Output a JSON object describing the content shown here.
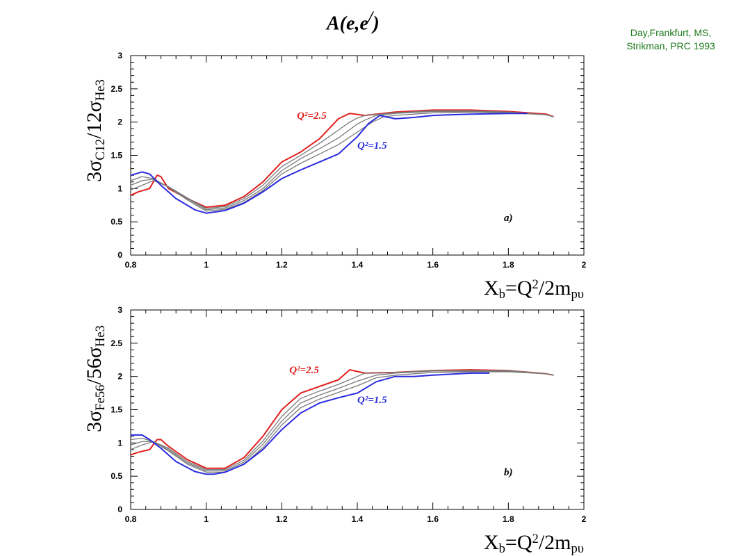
{
  "page": {
    "title": "A(e,e/)",
    "credit_line1": "Day,Frankfurt, MS,",
    "credit_line2": "Strikman, PRC 1993"
  },
  "chart_data": [
    {
      "type": "line",
      "panel_label": "a)",
      "xlabel": "X_b=Q^2/2m_pυ",
      "ylabel": "3σ_C12/12σ_He3",
      "xlim": [
        0.8,
        2.0
      ],
      "ylim": [
        0,
        3
      ],
      "x_ticks": [
        0.8,
        1,
        1.2,
        1.4,
        1.6,
        1.8,
        2
      ],
      "y_ticks": [
        0,
        0.5,
        1,
        1.5,
        2,
        2.5,
        3
      ],
      "x_tick_labels": [
        "0.8",
        "1",
        "1.2",
        "1.4",
        "1.6",
        "1.8",
        "2"
      ],
      "y_tick_labels": [
        "0",
        "0.5",
        "1",
        "1.5",
        "2",
        "2.5",
        "3"
      ],
      "annotations": [
        {
          "text": "Q²=2.5",
          "color": "#e0201e",
          "x": 1.24,
          "y": 2.05
        },
        {
          "text": "Q²=1.5",
          "color": "#2a2ae0",
          "x": 1.4,
          "y": 1.6
        }
      ],
      "series": [
        {
          "color": "#e0201e",
          "x": [
            0.8,
            0.82,
            0.85,
            0.87,
            0.88,
            0.9,
            0.95,
            1.0,
            1.05,
            1.1,
            1.15,
            1.2,
            1.25,
            1.3,
            1.35,
            1.38,
            1.42,
            1.5,
            1.6,
            1.7,
            1.8,
            1.9,
            1.92
          ],
          "y": [
            0.9,
            0.95,
            1.0,
            1.2,
            1.18,
            1.0,
            0.85,
            0.72,
            0.75,
            0.88,
            1.1,
            1.4,
            1.55,
            1.75,
            2.05,
            2.13,
            2.1,
            2.15,
            2.18,
            2.18,
            2.16,
            2.12,
            2.08
          ]
        },
        {
          "color": "#7a7a7a",
          "x": [
            0.8,
            0.83,
            0.86,
            0.9,
            0.95,
            1.0,
            1.05,
            1.1,
            1.15,
            1.2,
            1.25,
            1.3,
            1.35,
            1.38,
            1.4,
            1.42,
            1.5,
            1.6,
            1.7,
            1.8,
            1.9,
            1.92
          ],
          "y": [
            0.98,
            1.05,
            1.12,
            1.03,
            0.86,
            0.7,
            0.73,
            0.85,
            1.05,
            1.33,
            1.5,
            1.68,
            1.88,
            2.0,
            2.06,
            2.1,
            2.14,
            2.17,
            2.17,
            2.15,
            2.11,
            2.08
          ]
        },
        {
          "color": "#7a7a7a",
          "x": [
            0.8,
            0.83,
            0.86,
            0.9,
            0.95,
            1.0,
            1.05,
            1.1,
            1.15,
            1.2,
            1.25,
            1.3,
            1.35,
            1.4,
            1.42,
            1.45,
            1.5,
            1.6,
            1.7,
            1.8,
            1.9,
            1.92
          ],
          "y": [
            1.05,
            1.12,
            1.14,
            1.03,
            0.85,
            0.68,
            0.71,
            0.82,
            1.0,
            1.27,
            1.45,
            1.6,
            1.76,
            1.97,
            2.03,
            2.1,
            2.13,
            2.16,
            2.16,
            2.15,
            2.11,
            2.08
          ]
        },
        {
          "color": "#7a7a7a",
          "x": [
            0.8,
            0.83,
            0.86,
            0.9,
            0.95,
            1.0,
            1.05,
            1.1,
            1.15,
            1.2,
            1.25,
            1.3,
            1.35,
            1.4,
            1.44,
            1.47,
            1.5,
            1.6,
            1.7,
            1.8,
            1.9,
            1.92
          ],
          "y": [
            1.12,
            1.18,
            1.15,
            1.02,
            0.83,
            0.66,
            0.69,
            0.79,
            0.97,
            1.22,
            1.38,
            1.52,
            1.66,
            1.85,
            2.0,
            2.08,
            2.1,
            2.14,
            2.15,
            2.14,
            2.11,
            2.08
          ]
        },
        {
          "color": "#2a2ae0",
          "x": [
            0.8,
            0.83,
            0.85,
            0.88,
            0.92,
            0.97,
            1.0,
            1.05,
            1.1,
            1.15,
            1.2,
            1.25,
            1.3,
            1.35,
            1.4,
            1.43,
            1.46,
            1.5,
            1.55,
            1.6,
            1.7,
            1.8,
            1.85
          ],
          "y": [
            1.2,
            1.25,
            1.22,
            1.05,
            0.85,
            0.68,
            0.63,
            0.67,
            0.78,
            0.95,
            1.15,
            1.28,
            1.4,
            1.52,
            1.78,
            1.98,
            2.1,
            2.05,
            2.07,
            2.1,
            2.12,
            2.13,
            2.13
          ]
        }
      ]
    },
    {
      "type": "line",
      "panel_label": "b)",
      "xlabel": "X_b=Q^2/2m_pυ",
      "ylabel": "3σ_Fe56/56σ_He3",
      "xlim": [
        0.8,
        2.0
      ],
      "ylim": [
        0,
        3
      ],
      "x_ticks": [
        0.8,
        1,
        1.2,
        1.4,
        1.6,
        1.8,
        2
      ],
      "y_ticks": [
        0,
        0.5,
        1,
        1.5,
        2,
        2.5,
        3
      ],
      "x_tick_labels": [
        "0.8",
        "1",
        "1.2",
        "1.4",
        "1.6",
        "1.8",
        "2"
      ],
      "y_tick_labels": [
        "0",
        "0.5",
        "1",
        "1.5",
        "2",
        "2.5",
        "3"
      ],
      "annotations": [
        {
          "text": "Q²=2.5",
          "color": "#e0201e",
          "x": 1.22,
          "y": 2.05
        },
        {
          "text": "Q²=1.5",
          "color": "#2a2ae0",
          "x": 1.4,
          "y": 1.6
        }
      ],
      "series": [
        {
          "color": "#e0201e",
          "x": [
            0.8,
            0.82,
            0.85,
            0.87,
            0.88,
            0.9,
            0.95,
            1.0,
            1.05,
            1.1,
            1.15,
            1.2,
            1.25,
            1.3,
            1.35,
            1.38,
            1.42,
            1.5,
            1.6,
            1.7,
            1.8,
            1.9,
            1.92
          ],
          "y": [
            0.82,
            0.86,
            0.9,
            1.05,
            1.05,
            0.95,
            0.75,
            0.62,
            0.62,
            0.78,
            1.1,
            1.5,
            1.75,
            1.85,
            1.95,
            2.1,
            2.05,
            2.06,
            2.09,
            2.1,
            2.09,
            2.04,
            2.02
          ]
        },
        {
          "color": "#7a7a7a",
          "x": [
            0.8,
            0.83,
            0.86,
            0.9,
            0.95,
            1.0,
            1.05,
            1.1,
            1.15,
            1.2,
            1.25,
            1.3,
            1.35,
            1.4,
            1.42,
            1.45,
            1.5,
            1.6,
            1.7,
            1.8,
            1.9,
            1.92
          ],
          "y": [
            0.9,
            0.97,
            1.02,
            0.92,
            0.72,
            0.6,
            0.6,
            0.74,
            1.03,
            1.4,
            1.67,
            1.78,
            1.88,
            2.0,
            2.05,
            2.05,
            2.06,
            2.09,
            2.09,
            2.09,
            2.04,
            2.02
          ]
        },
        {
          "color": "#7a7a7a",
          "x": [
            0.8,
            0.83,
            0.86,
            0.9,
            0.95,
            1.0,
            1.05,
            1.1,
            1.15,
            1.2,
            1.25,
            1.3,
            1.35,
            1.4,
            1.45,
            1.5,
            1.6,
            1.7,
            1.8,
            1.9,
            1.92
          ],
          "y": [
            0.97,
            1.02,
            1.02,
            0.9,
            0.7,
            0.58,
            0.58,
            0.71,
            0.98,
            1.33,
            1.6,
            1.72,
            1.82,
            1.93,
            2.02,
            2.05,
            2.08,
            2.08,
            2.08,
            2.04,
            2.02
          ]
        },
        {
          "color": "#7a7a7a",
          "x": [
            0.8,
            0.83,
            0.86,
            0.9,
            0.95,
            1.0,
            1.05,
            1.1,
            1.15,
            1.2,
            1.25,
            1.3,
            1.35,
            1.4,
            1.45,
            1.5,
            1.6,
            1.7,
            1.8,
            1.9,
            1.92
          ],
          "y": [
            1.05,
            1.07,
            1.02,
            0.88,
            0.68,
            0.56,
            0.56,
            0.68,
            0.93,
            1.27,
            1.53,
            1.66,
            1.76,
            1.86,
            1.98,
            2.02,
            2.06,
            2.07,
            2.07,
            2.04,
            2.02
          ]
        },
        {
          "color": "#2a2ae0",
          "x": [
            0.8,
            0.83,
            0.85,
            0.88,
            0.92,
            0.97,
            1.0,
            1.02,
            1.05,
            1.1,
            1.15,
            1.2,
            1.25,
            1.3,
            1.35,
            1.4,
            1.45,
            1.5,
            1.55,
            1.6,
            1.7,
            1.75
          ],
          "y": [
            1.12,
            1.12,
            1.05,
            0.92,
            0.72,
            0.57,
            0.53,
            0.53,
            0.56,
            0.68,
            0.9,
            1.2,
            1.45,
            1.6,
            1.68,
            1.75,
            1.92,
            2.0,
            2.0,
            2.02,
            2.05,
            2.05
          ]
        }
      ]
    }
  ]
}
